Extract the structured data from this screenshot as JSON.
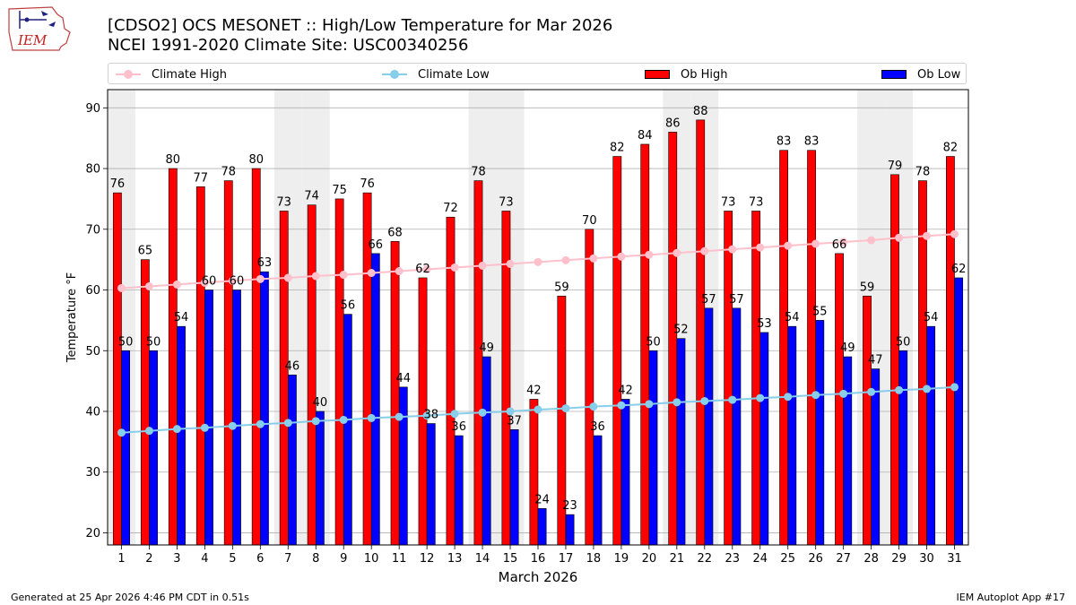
{
  "header": {
    "title_line1": "[CDSO2] OCS MESONET :: High/Low Temperature for Mar 2026",
    "title_line2": "NCEI 1991-2020 Climate Site: USC00340256",
    "logo_text": "IEM"
  },
  "legend": {
    "climate_high": "Climate High",
    "climate_low": "Climate Low",
    "ob_high": "Ob High",
    "ob_low": "Ob Low"
  },
  "footer": {
    "left": "Generated at 25 Apr 2026 4:46 PM CDT in 0.51s",
    "right": "IEM Autoplot App #17"
  },
  "colors": {
    "ob_high": "#ff0000",
    "ob_low": "#0000ff",
    "climate_high": "#ffc0cb",
    "climate_low": "#87ceeb",
    "weekend_band": "#eeeeee",
    "grid": "#b0b0b0"
  },
  "chart_data": {
    "type": "bar",
    "xlabel": "March 2026",
    "ylabel": "Temperature °F",
    "ylim": [
      18,
      93
    ],
    "yticks": [
      20,
      30,
      40,
      50,
      60,
      70,
      80,
      90
    ],
    "grid": "horizontal",
    "legend_position": "top",
    "categories": [
      "1",
      "2",
      "3",
      "4",
      "5",
      "6",
      "7",
      "8",
      "9",
      "10",
      "11",
      "12",
      "13",
      "14",
      "15",
      "16",
      "17",
      "18",
      "19",
      "20",
      "21",
      "22",
      "23",
      "24",
      "25",
      "26",
      "27",
      "28",
      "29",
      "30",
      "31"
    ],
    "weekend_days": [
      1,
      7,
      8,
      14,
      15,
      21,
      22,
      28,
      29
    ],
    "series": [
      {
        "name": "Ob High",
        "kind": "bar",
        "values": [
          76,
          65,
          80,
          77,
          78,
          80,
          73,
          74,
          75,
          76,
          68,
          62,
          72,
          78,
          73,
          42,
          59,
          70,
          82,
          84,
          86,
          88,
          73,
          73,
          83,
          83,
          66,
          59,
          79,
          78,
          82
        ]
      },
      {
        "name": "Ob Low",
        "kind": "bar",
        "values": [
          50,
          50,
          54,
          60,
          60,
          63,
          46,
          40,
          56,
          66,
          44,
          38,
          36,
          49,
          37,
          24,
          23,
          36,
          42,
          50,
          52,
          57,
          57,
          53,
          54,
          55,
          49,
          47,
          50,
          54,
          62
        ]
      },
      {
        "name": "Climate High",
        "kind": "line",
        "values": [
          60.3,
          60.6,
          60.9,
          61.2,
          61.5,
          61.8,
          62.0,
          62.3,
          62.5,
          62.8,
          63.1,
          63.4,
          63.7,
          64.0,
          64.3,
          64.6,
          64.9,
          65.2,
          65.5,
          65.8,
          66.1,
          66.4,
          66.7,
          67.0,
          67.3,
          67.6,
          67.9,
          68.2,
          68.6,
          68.9,
          69.2
        ]
      },
      {
        "name": "Climate Low",
        "kind": "line",
        "values": [
          36.5,
          36.8,
          37.1,
          37.3,
          37.6,
          37.9,
          38.1,
          38.4,
          38.6,
          38.9,
          39.1,
          39.3,
          39.6,
          39.8,
          40.0,
          40.3,
          40.5,
          40.8,
          41.0,
          41.2,
          41.5,
          41.7,
          41.9,
          42.2,
          42.4,
          42.7,
          42.9,
          43.2,
          43.5,
          43.7,
          44.0
        ]
      }
    ]
  }
}
